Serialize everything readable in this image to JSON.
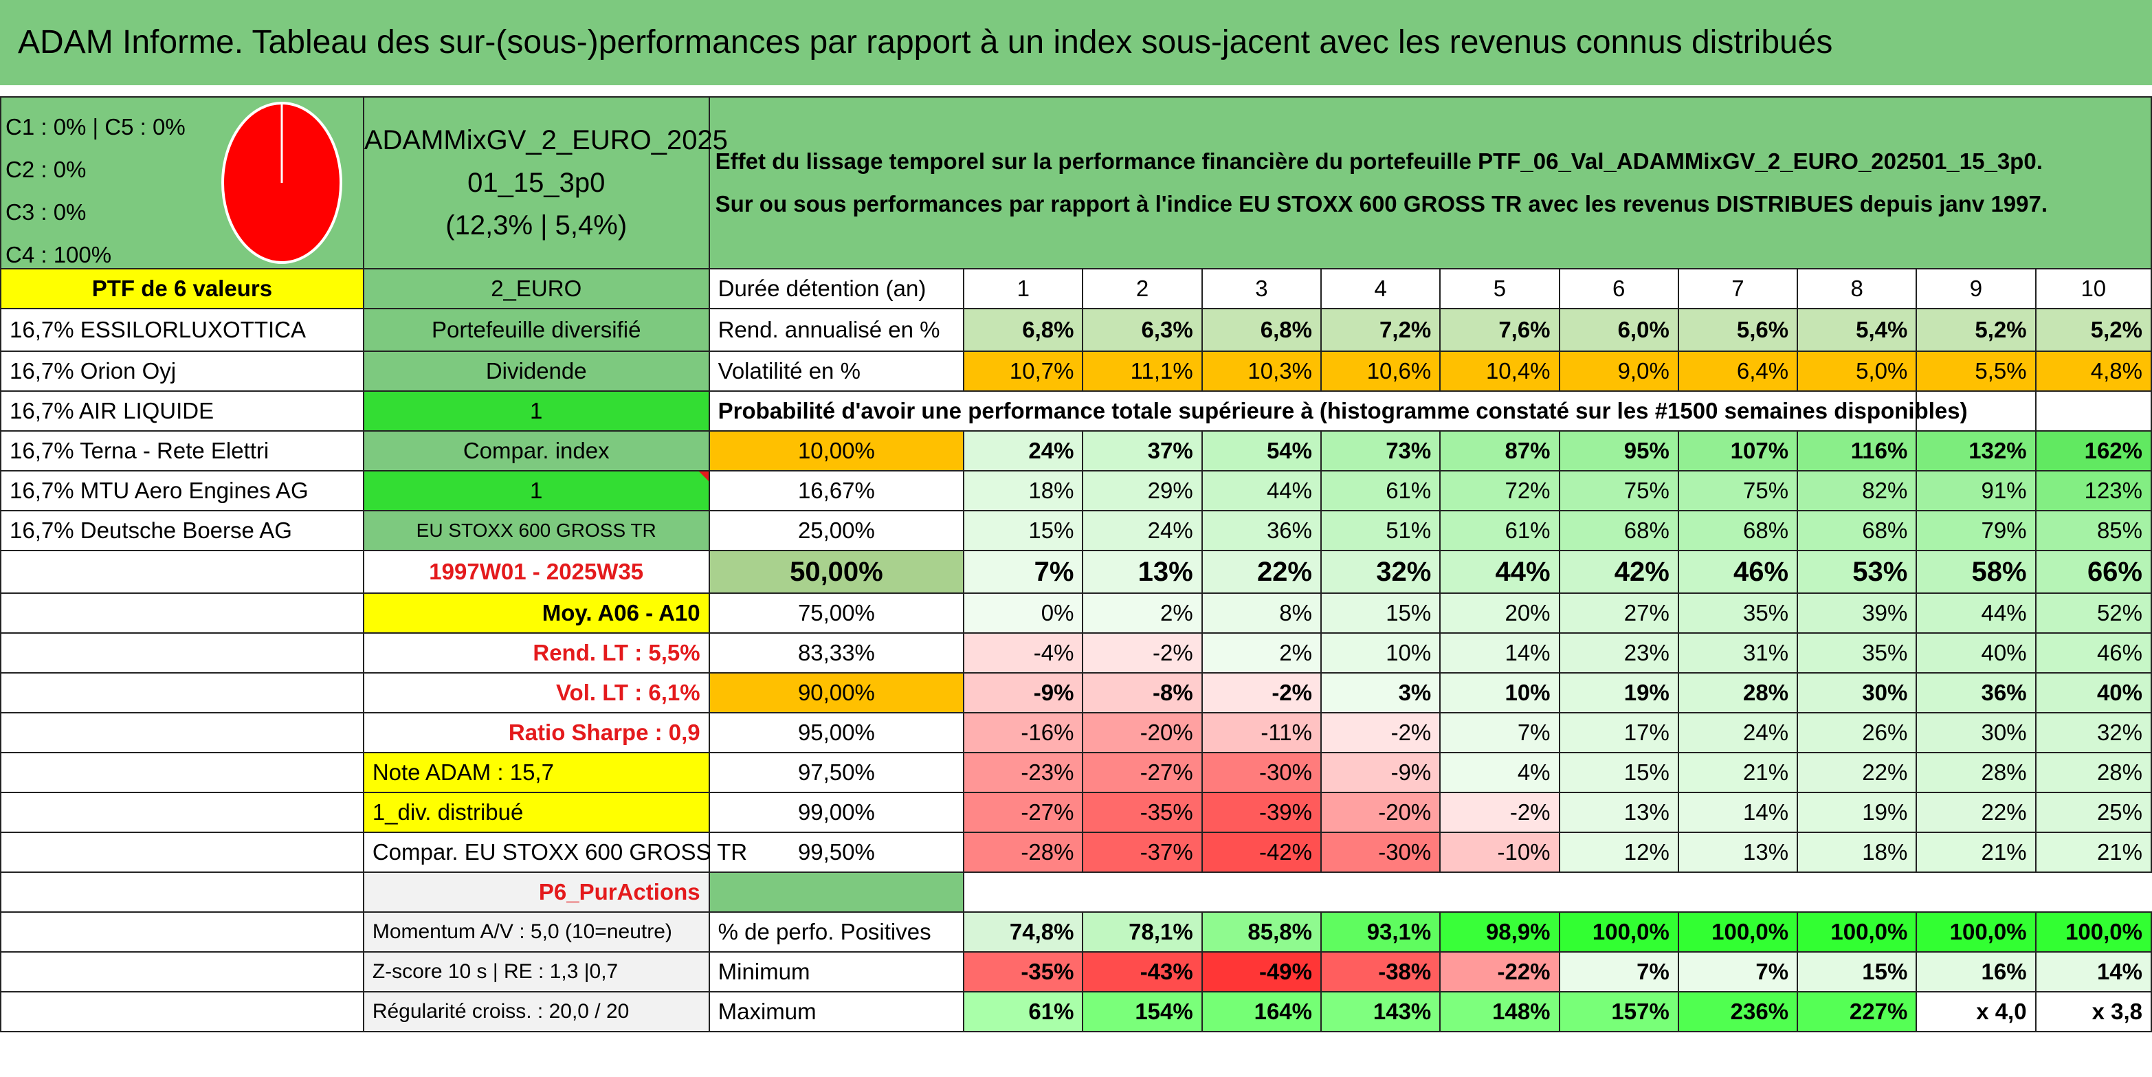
{
  "title": "ADAM Informe. Tableau des sur-(sous-)performances par rapport à un index sous-jacent avec les revenus connus distribués",
  "pie": {
    "legend": [
      "C1 : 0% | C5 : 0%",
      "C2 : 0%",
      "C3 : 0%",
      "C4 : 100%"
    ],
    "color": "#ff0000"
  },
  "portfolio": {
    "name_line1": "ADAMMixGV_2_EURO_2025",
    "name_line2": "01_15_3p0",
    "name_line3": "(12,3% | 5,4%)",
    "currency": "2_EURO",
    "type": "Portefeuille diversifié",
    "dividend_label": "Dividende",
    "dividend_value": "1",
    "compar_label": "Compar. index",
    "compar_value": "1",
    "index_name": "EU STOXX 600 GROSS TR",
    "period": "1997W01 - 2025W35",
    "moy": "Moy. A06 - A10",
    "rend_lt": "Rend. LT : 5,5%",
    "vol_lt": "Vol. LT : 6,1%",
    "sharpe": "Ratio Sharpe : 0,9",
    "note": "Note ADAM : 15,7",
    "div": "1_div. distribué",
    "compar_full": "Compar. EU STOXX 600 GROSS TR",
    "p6": "P6_PurActions",
    "momentum": "Momentum A/V : 5,0 (10=neutre)",
    "zscore": "Z-score 10 s | RE : 1,3 |0,7",
    "regularite": "Régularité croiss. : 20,0 / 20"
  },
  "effet": {
    "line1": "Effet du lissage temporel sur la performance financière du portefeuille PTF_06_Val_ADAMMixGV_2_EURO_202501_15_3p0.",
    "line2": "Sur ou sous performances par rapport à l'indice EU STOXX 600 GROSS TR avec les revenus DISTRIBUES depuis janv 1997."
  },
  "holdings": {
    "header": "PTF de 6 valeurs",
    "items": [
      "16,7% ESSILORLUXOTTICA",
      "16,7% Orion Oyj",
      "16,7% AIR LIQUIDE",
      "16,7% Terna - Rete Elettri",
      "16,7% MTU Aero Engines AG",
      "16,7% Deutsche Boerse AG"
    ]
  },
  "table": {
    "duree_label": "Durée détention (an)",
    "years": [
      "1",
      "2",
      "3",
      "4",
      "5",
      "6",
      "7",
      "8",
      "9",
      "10"
    ],
    "rend_label": "Rend. annualisé en %",
    "rend": [
      "6,8%",
      "6,3%",
      "6,8%",
      "7,2%",
      "7,6%",
      "6,0%",
      "5,6%",
      "5,4%",
      "5,2%",
      "5,2%"
    ],
    "vol_label": "Volatilité en %",
    "vol": [
      "10,7%",
      "11,1%",
      "10,3%",
      "10,6%",
      "10,4%",
      "9,0%",
      "6,4%",
      "5,0%",
      "5,5%",
      "4,8%"
    ],
    "proba_label": "Probabilité d'avoir une performance totale supérieure à (histogramme constaté sur les #1500 semaines disponibles)",
    "quantiles": [
      {
        "q": "10,00%",
        "v": [
          "24%",
          "37%",
          "54%",
          "73%",
          "87%",
          "95%",
          "107%",
          "116%",
          "132%",
          "162%"
        ]
      },
      {
        "q": "16,67%",
        "v": [
          "18%",
          "29%",
          "44%",
          "61%",
          "72%",
          "75%",
          "75%",
          "82%",
          "91%",
          "123%"
        ]
      },
      {
        "q": "25,00%",
        "v": [
          "15%",
          "24%",
          "36%",
          "51%",
          "61%",
          "68%",
          "68%",
          "68%",
          "79%",
          "85%"
        ]
      },
      {
        "q": "50,00%",
        "v": [
          "7%",
          "13%",
          "22%",
          "32%",
          "44%",
          "42%",
          "46%",
          "53%",
          "58%",
          "66%"
        ]
      },
      {
        "q": "75,00%",
        "v": [
          "0%",
          "2%",
          "8%",
          "15%",
          "20%",
          "27%",
          "35%",
          "39%",
          "44%",
          "52%"
        ]
      },
      {
        "q": "83,33%",
        "v": [
          "-4%",
          "-2%",
          "2%",
          "10%",
          "14%",
          "23%",
          "31%",
          "35%",
          "40%",
          "46%"
        ]
      },
      {
        "q": "90,00%",
        "v": [
          "-9%",
          "-8%",
          "-2%",
          "3%",
          "10%",
          "19%",
          "28%",
          "30%",
          "36%",
          "40%"
        ]
      },
      {
        "q": "95,00%",
        "v": [
          "-16%",
          "-20%",
          "-11%",
          "-2%",
          "7%",
          "17%",
          "24%",
          "26%",
          "30%",
          "32%"
        ]
      },
      {
        "q": "97,50%",
        "v": [
          "-23%",
          "-27%",
          "-30%",
          "-9%",
          "4%",
          "15%",
          "21%",
          "22%",
          "28%",
          "28%"
        ]
      },
      {
        "q": "99,00%",
        "v": [
          "-27%",
          "-35%",
          "-39%",
          "-20%",
          "-2%",
          "13%",
          "14%",
          "19%",
          "22%",
          "25%"
        ]
      },
      {
        "q": "99,50%",
        "v": [
          "-28%",
          "-37%",
          "-42%",
          "-30%",
          "-10%",
          "12%",
          "13%",
          "18%",
          "21%",
          "21%"
        ]
      }
    ],
    "pos_label": "% de perfo. Positives",
    "pos": [
      "74,8%",
      "78,1%",
      "85,8%",
      "93,1%",
      "98,9%",
      "100,0%",
      "100,0%",
      "100,0%",
      "100,0%",
      "100,0%"
    ],
    "min_label": "Minimum",
    "min": [
      "-35%",
      "-43%",
      "-49%",
      "-38%",
      "-22%",
      "7%",
      "7%",
      "15%",
      "16%",
      "14%"
    ],
    "max_label": "Maximum",
    "max": [
      "61%",
      "154%",
      "164%",
      "143%",
      "148%",
      "157%",
      "236%",
      "227%",
      "x 4,0",
      "x 3,8"
    ]
  },
  "colors": {
    "header_green": "#7dc97f",
    "highlight_yellow": "#ffff00",
    "highlight_orange": "#ffc000",
    "bright_green": "#33dd33",
    "text_red": "#e41a1c"
  }
}
